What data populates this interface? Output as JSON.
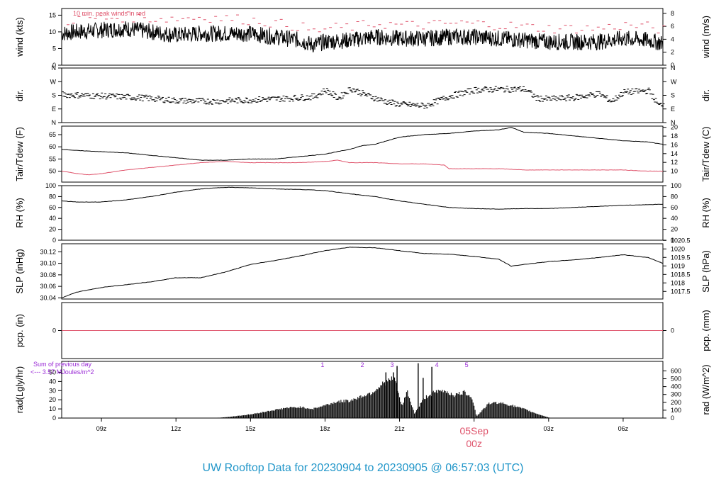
{
  "footer": "UW Rooftop Data for 20230904  to  20230905 @ 06:57:03  (UTC)",
  "colors": {
    "line": "#000000",
    "accent": "#df536b",
    "purple": "#9a2bd6",
    "footer": "#2196c9"
  },
  "chart_data": {
    "type": "line",
    "x_axis": {
      "unit": "UTC hour",
      "range": [
        7.4,
        31.6
      ],
      "ticks": [
        {
          "x": 9,
          "label": "09z"
        },
        {
          "x": 12,
          "label": "12z"
        },
        {
          "x": 15,
          "label": "15z"
        },
        {
          "x": 18,
          "label": "18z"
        },
        {
          "x": 21,
          "label": "21z"
        },
        {
          "x": 27,
          "label": "03z"
        },
        {
          "x": 30,
          "label": "06z"
        }
      ],
      "day_marker": {
        "x": 24,
        "date_label": "05Sep",
        "time_label": "00z"
      }
    },
    "panels": [
      {
        "id": "wind",
        "ylabel": "wind (kts)",
        "ylabel_right": "wind (m/s)",
        "ylim": [
          0,
          17
        ],
        "left_ticks": [
          0,
          5,
          10,
          15
        ],
        "right_ticks": [
          {
            "v": 0,
            "label": "0"
          },
          {
            "v": 3.89,
            "label": "2"
          },
          {
            "v": 7.78,
            "label": "4"
          },
          {
            "v": 11.66,
            "label": "6"
          },
          {
            "v": 15.55,
            "label": "8"
          }
        ],
        "annotation": "10 min. peak winds in red",
        "series": [
          {
            "style": "line",
            "color": "#000000",
            "x": [
              7.4,
              8,
              9,
              10,
              11,
              12,
              13,
              14,
              15,
              16,
              17,
              17.5,
              18,
              19,
              20,
              21,
              22,
              23,
              24,
              25,
              26,
              27,
              28,
              29,
              30,
              31,
              31.6
            ],
            "y": [
              9.5,
              10,
              10.5,
              11,
              10,
              9,
              9.5,
              9.5,
              9.5,
              8.5,
              7.5,
              6,
              7,
              7.5,
              8.5,
              8,
              8,
              8.5,
              8.5,
              8,
              7.5,
              7,
              7,
              7,
              8,
              7.5,
              6.5
            ]
          },
          {
            "style": "dash",
            "color": "#df536b",
            "x": [
              7.4,
              8,
              9,
              10,
              11,
              12,
              13,
              14,
              15,
              16,
              17,
              17.5,
              18,
              19,
              20,
              21,
              22,
              23,
              24,
              25,
              26,
              27,
              28,
              29,
              30,
              31,
              31.6
            ],
            "y": [
              13,
              14,
              14,
              14.5,
              14,
              14,
              14.5,
              14,
              13.5,
              12.5,
              11.5,
              10,
              11,
              11.5,
              12.5,
              12,
              12,
              12.5,
              12.5,
              12,
              11.5,
              11,
              11,
              11,
              12,
              11.5,
              10.5
            ]
          }
        ]
      },
      {
        "id": "dir",
        "ylabel": "dir.",
        "ylabel_right": "dir.",
        "ylim": [
          0,
          360
        ],
        "left_ticks": [
          {
            "v": 0,
            "label": "N"
          },
          {
            "v": 90,
            "label": "E"
          },
          {
            "v": 180,
            "label": "S"
          },
          {
            "v": 270,
            "label": "W"
          },
          {
            "v": 360,
            "label": "N"
          }
        ],
        "right_ticks": [
          {
            "v": 0,
            "label": "N"
          },
          {
            "v": 90,
            "label": "E"
          },
          {
            "v": 180,
            "label": "S"
          },
          {
            "v": 270,
            "label": "W"
          },
          {
            "v": 360,
            "label": "N"
          }
        ],
        "series": [
          {
            "style": "points",
            "color": "#000000",
            "x": [
              7.4,
              9,
              10.5,
              12,
              13.5,
              15,
              16.5,
              17.5,
              18,
              18.5,
              19,
              19.5,
              20,
              20.5,
              21,
              22,
              23,
              24,
              25,
              26,
              26.5,
              27,
              28,
              29,
              29.5,
              30,
              31,
              31.4,
              31.6
            ],
            "y": [
              185,
              175,
              165,
              145,
              140,
              150,
              160,
              170,
              215,
              160,
              225,
              190,
              160,
              135,
              120,
              110,
              175,
              215,
              220,
              220,
              160,
              155,
              165,
              190,
              140,
              200,
              210,
              110,
              130
            ]
          }
        ]
      },
      {
        "id": "temp",
        "ylabel": "Tair/Tdew (F)",
        "ylabel_right": "Tair/Tdew (C)",
        "ylim": [
          45.5,
          68.5
        ],
        "left_ticks": [
          50,
          55,
          60,
          65
        ],
        "right_ticks": [
          {
            "v": 50,
            "label": "10"
          },
          {
            "v": 53.6,
            "label": "12"
          },
          {
            "v": 57.2,
            "label": "14"
          },
          {
            "v": 60.8,
            "label": "16"
          },
          {
            "v": 64.4,
            "label": "18"
          },
          {
            "v": 68,
            "label": "20"
          }
        ],
        "series": [
          {
            "name": "Tair",
            "style": "line",
            "color": "#000000",
            "x": [
              7.4,
              8,
              9,
              10,
              11,
              12,
              13,
              14,
              15,
              16,
              17,
              18,
              19,
              19.5,
              20,
              21,
              22,
              23,
              24,
              25,
              25.5,
              26,
              27,
              28,
              29,
              30,
              31,
              31.6
            ],
            "y": [
              59,
              58.5,
              58,
              57.5,
              56.5,
              55.5,
              54.5,
              54.5,
              55,
              55,
              56,
              57,
              59,
              60.5,
              61,
              64,
              65,
              65.5,
              66.5,
              67,
              68,
              66,
              65.5,
              64.5,
              63.5,
              62.5,
              62,
              61
            ]
          },
          {
            "name": "Tdew",
            "style": "line",
            "color": "#df536b",
            "x": [
              7.4,
              8,
              8.5,
              9,
              10,
              11,
              12,
              13,
              14,
              15,
              16,
              17,
              18,
              18.5,
              19,
              20,
              21,
              22,
              22.8,
              23,
              24,
              25,
              26,
              27,
              28,
              29,
              30,
              31,
              31.6
            ],
            "y": [
              50,
              49,
              48.5,
              49,
              50.5,
              51.5,
              52.5,
              53.5,
              54,
              53.5,
              53.5,
              53.5,
              54,
              54.5,
              53.5,
              53.5,
              53,
              53,
              52.5,
              51,
              51,
              51,
              50.5,
              50.5,
              50.5,
              50.5,
              50.5,
              50,
              50
            ]
          }
        ]
      },
      {
        "id": "rh",
        "ylabel": "RH (%)",
        "ylabel_right": "RH (%)",
        "ylim": [
          0,
          100
        ],
        "left_ticks": [
          0,
          20,
          40,
          60,
          80,
          100
        ],
        "right_ticks": [
          {
            "v": 0,
            "label": "0"
          },
          {
            "v": 20,
            "label": "20"
          },
          {
            "v": 40,
            "label": "40"
          },
          {
            "v": 60,
            "label": "60"
          },
          {
            "v": 80,
            "label": "80"
          },
          {
            "v": 100,
            "label": "100"
          }
        ],
        "series": [
          {
            "style": "line",
            "color": "#000000",
            "x": [
              7.4,
              8,
              9,
              10,
              11,
              12,
              13,
              14,
              15,
              16,
              17,
              18,
              19,
              20,
              21,
              22,
              23,
              24,
              25,
              26,
              27,
              28,
              29,
              30,
              31,
              31.6
            ],
            "y": [
              72,
              70,
              70,
              74,
              80,
              88,
              94,
              97,
              96,
              94,
              93,
              91,
              85,
              80,
              72,
              66,
              60,
              58,
              57,
              58,
              58,
              60,
              62,
              64,
              65,
              66
            ]
          }
        ]
      },
      {
        "id": "slp",
        "ylabel": "SLP (inHg)",
        "ylabel_right": "SLP (hPa)",
        "ylim": [
          30.038,
          30.134
        ],
        "left_ticks": [
          {
            "v": 30.04,
            "label": "30.04"
          },
          {
            "v": 30.06,
            "label": "30.06"
          },
          {
            "v": 30.08,
            "label": "30.08"
          },
          {
            "v": 30.1,
            "label": "30.10"
          },
          {
            "v": 30.12,
            "label": "30.12"
          }
        ],
        "right_ticks": [
          {
            "v": 30.0512,
            "label": "1017.5"
          },
          {
            "v": 30.066,
            "label": "1018"
          },
          {
            "v": 30.0807,
            "label": "1018.5"
          },
          {
            "v": 30.0955,
            "label": "1019"
          },
          {
            "v": 30.1103,
            "label": "1019.5"
          },
          {
            "v": 30.125,
            "label": "1020"
          },
          {
            "v": 30.1398,
            "label": "1020.5"
          }
        ],
        "series": [
          {
            "style": "line",
            "color": "#000000",
            "x": [
              7.4,
              8,
              9,
              10,
              11,
              12,
              13,
              14,
              15,
              16,
              17,
              18,
              19,
              20,
              21,
              22,
              23,
              24,
              25,
              25.5,
              26,
              27,
              28,
              29,
              30,
              31,
              31.6
            ],
            "y": [
              30.04,
              30.05,
              30.058,
              30.063,
              30.068,
              30.075,
              30.075,
              30.085,
              30.098,
              30.105,
              30.113,
              30.122,
              30.128,
              30.127,
              30.122,
              30.117,
              30.116,
              30.112,
              30.107,
              30.095,
              30.098,
              30.103,
              30.106,
              30.11,
              30.115,
              30.11,
              30.1
            ]
          }
        ]
      },
      {
        "id": "pcp",
        "ylabel": "pcp. (in)",
        "ylabel_right": "pcp. (mm)",
        "ylim": [
          -1,
          1
        ],
        "left_ticks": [
          {
            "v": 0,
            "label": "0"
          }
        ],
        "right_ticks": [
          {
            "v": 0,
            "label": "0"
          }
        ],
        "series": [
          {
            "style": "line",
            "color": "#df536b",
            "x": [
              7.4,
              31.6
            ],
            "y": [
              0,
              0
            ]
          }
        ]
      },
      {
        "id": "rad",
        "ylabel": "rad(Lgly/hr)",
        "ylabel_right": "rad (W/m^2)",
        "ylim": [
          0,
          62
        ],
        "left_ticks": [
          0,
          10,
          20,
          30,
          40,
          50
        ],
        "right_ticks": [
          {
            "v": 0,
            "label": "0"
          },
          {
            "v": 8.6,
            "label": "100"
          },
          {
            "v": 17.2,
            "label": "200"
          },
          {
            "v": 25.8,
            "label": "300"
          },
          {
            "v": 34.4,
            "label": "400"
          },
          {
            "v": 43,
            "label": "500"
          },
          {
            "v": 51.6,
            "label": "600"
          }
        ],
        "annotation_lines": [
          "Sum of previous day",
          "<--- 3.57 MJoules/m^2"
        ],
        "hour_markers": [
          {
            "x": 17.9,
            "label": "1"
          },
          {
            "x": 19.5,
            "label": "2"
          },
          {
            "x": 20.7,
            "label": "3"
          },
          {
            "x": 22.5,
            "label": "4"
          },
          {
            "x": 23.7,
            "label": "5"
          }
        ],
        "series": [
          {
            "style": "area",
            "color": "#000000",
            "x": [
              13.2,
              13.8,
              14.2,
              15,
              15.8,
              16.4,
              17,
              17.5,
              18,
              18.5,
              19,
              19.5,
              19.9,
              20.2,
              20.5,
              20.8,
              21.1,
              21.3,
              21.6,
              22,
              22.4,
              22.8,
              23.2,
              23.6,
              23.9,
              24.1,
              24.6,
              25,
              25.5,
              26,
              26.5,
              26.9,
              27.1
            ],
            "y": [
              0,
              0.5,
              1.5,
              4,
              8,
              11,
              12,
              10,
              14,
              18,
              19,
              24,
              28,
              35,
              40,
              44,
              12,
              30,
              5,
              22,
              28,
              30,
              25,
              28,
              24,
              2,
              16,
              17,
              14,
              10,
              5,
              1.5,
              0
            ]
          }
        ]
      }
    ]
  }
}
